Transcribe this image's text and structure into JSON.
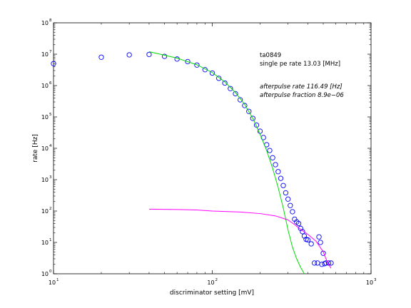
{
  "chart_data": {
    "type": "scatter",
    "x_scale": "log",
    "y_scale": "log",
    "xlim": [
      10,
      1000
    ],
    "ylim": [
      1,
      100000000
    ],
    "xlabel": "discriminator setting [mV]",
    "ylabel": "rate [Hz]",
    "grid": false,
    "x_ticks": [
      {
        "base": "10",
        "exp": "1",
        "value": 10
      },
      {
        "base": "10",
        "exp": "2",
        "value": 100
      },
      {
        "base": "10",
        "exp": "3",
        "value": 1000
      }
    ],
    "y_ticks": [
      {
        "base": "10",
        "exp": "0",
        "value": 1
      },
      {
        "base": "10",
        "exp": "1",
        "value": 10
      },
      {
        "base": "10",
        "exp": "2",
        "value": 100
      },
      {
        "base": "10",
        "exp": "3",
        "value": 1000
      },
      {
        "base": "10",
        "exp": "4",
        "value": 10000
      },
      {
        "base": "10",
        "exp": "5",
        "value": 100000
      },
      {
        "base": "10",
        "exp": "6",
        "value": 1000000
      },
      {
        "base": "10",
        "exp": "7",
        "value": 10000000
      },
      {
        "base": "10",
        "exp": "8",
        "value": 100000000
      }
    ],
    "annotations": [
      {
        "text": "ta0849",
        "italic": false
      },
      {
        "text": "single pe rate 13.03 [MHz]",
        "italic": false
      },
      {
        "text": "afterpulse rate 116.49 [Hz]",
        "italic": true
      },
      {
        "text": "afterpulse fraction 8.9e−06",
        "italic": true
      }
    ],
    "series": [
      {
        "marker": "circle",
        "color": "#0000ff",
        "points": [
          [
            10,
            5000000
          ],
          [
            20,
            8000000
          ],
          [
            30,
            9500000
          ],
          [
            40,
            9800000
          ],
          [
            50,
            8500000
          ],
          [
            60,
            7000000
          ],
          [
            70,
            5800000
          ],
          [
            80,
            4500000
          ],
          [
            90,
            3200000
          ],
          [
            100,
            2500000
          ],
          [
            110,
            1700000
          ],
          [
            120,
            1200000
          ],
          [
            130,
            800000
          ],
          [
            140,
            550000
          ],
          [
            150,
            350000
          ],
          [
            160,
            230000
          ],
          [
            170,
            150000
          ],
          [
            180,
            90000
          ],
          [
            190,
            55000
          ],
          [
            200,
            35000
          ],
          [
            210,
            22000
          ],
          [
            220,
            13000
          ],
          [
            230,
            8500
          ],
          [
            240,
            5000
          ],
          [
            250,
            3000
          ],
          [
            260,
            1800
          ],
          [
            270,
            1100
          ],
          [
            280,
            650
          ],
          [
            290,
            380
          ],
          [
            300,
            240
          ],
          [
            310,
            150
          ],
          [
            320,
            95
          ],
          [
            330,
            55
          ],
          [
            340,
            45
          ],
          [
            350,
            40
          ],
          [
            360,
            28
          ],
          [
            370,
            22
          ],
          [
            380,
            16
          ],
          [
            390,
            12.5
          ],
          [
            400,
            12
          ],
          [
            420,
            9
          ],
          [
            440,
            2.2
          ],
          [
            460,
            2.2
          ],
          [
            470,
            15
          ],
          [
            480,
            10
          ],
          [
            490,
            2
          ],
          [
            500,
            4.5
          ],
          [
            510,
            2.1
          ],
          [
            520,
            2.2
          ],
          [
            540,
            2.2
          ],
          [
            560,
            2.2
          ]
        ]
      },
      {
        "marker": "line",
        "color": "#00dd00",
        "points": [
          [
            40,
            12000000
          ],
          [
            60,
            7500000
          ],
          [
            80,
            4600000
          ],
          [
            100,
            2600000
          ],
          [
            120,
            1300000
          ],
          [
            140,
            600000
          ],
          [
            160,
            250000
          ],
          [
            180,
            90000
          ],
          [
            200,
            28000
          ],
          [
            220,
            8500
          ],
          [
            240,
            2300
          ],
          [
            260,
            560
          ],
          [
            280,
            125
          ],
          [
            300,
            25
          ],
          [
            320,
            7
          ],
          [
            340,
            3
          ],
          [
            360,
            1.6
          ],
          [
            380,
            1
          ]
        ]
      },
      {
        "marker": "line",
        "color": "#ff00ff",
        "points": [
          [
            40,
            115
          ],
          [
            60,
            112
          ],
          [
            80,
            108
          ],
          [
            100,
            100
          ],
          [
            150,
            93
          ],
          [
            200,
            83
          ],
          [
            250,
            70
          ],
          [
            300,
            52
          ],
          [
            330,
            37
          ],
          [
            360,
            26
          ],
          [
            400,
            18
          ],
          [
            450,
            11
          ],
          [
            500,
            5
          ],
          [
            520,
            3
          ],
          [
            540,
            2
          ],
          [
            560,
            1.5
          ]
        ]
      }
    ]
  }
}
